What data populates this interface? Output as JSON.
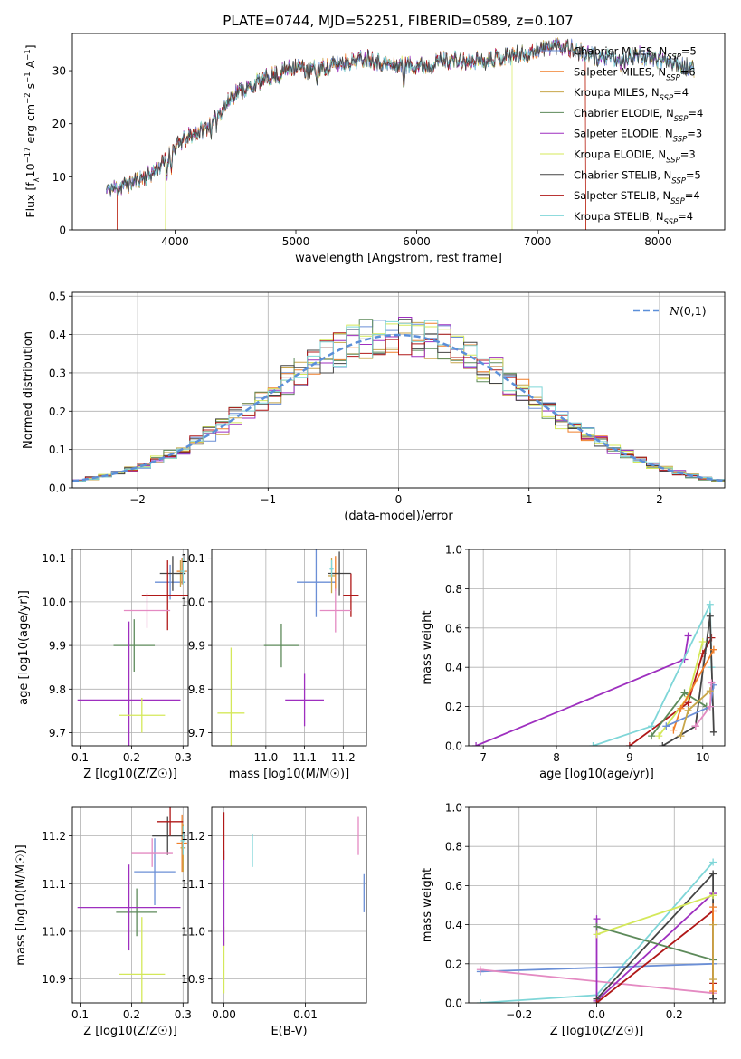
{
  "figure_title": "PLATE=0744, MJD=52251, FIBERID=0589, z=0.107",
  "model_colors": {
    "Chabrier MILES": "#6b8fd6",
    "Salpeter MILES": "#f07f2a",
    "Kroupa MILES": "#c8a64a",
    "Chabrier ELODIE": "#5d8a5a",
    "Salpeter ELODIE": "#9e2fbf",
    "Kroupa ELODIE": "#d4e85a",
    "Chabrier STELIB": "#444444",
    "Salpeter STELIB": "#b01818",
    "Kroupa STELIB": "#7fd6d8",
    "extra_pink": "#e48ac2",
    "normal_curve": "#5b8fd9"
  },
  "chart_data": [
    {
      "id": "spectrum",
      "type": "line",
      "title": "PLATE=0744, MJD=52251, FIBERID=0589, z=0.107",
      "xlabel": "wavelength [Angstrom, rest frame]",
      "ylabel": "Flux [f",
      "xlim": [
        3150,
        8550
      ],
      "ylim": [
        0,
        37
      ],
      "xticks": [
        4000,
        5000,
        6000,
        7000,
        8000
      ],
      "yticks": [
        0,
        10,
        20,
        30
      ],
      "grid": false,
      "legend_position": "right",
      "legend": [
        "Chabrier MILES, N=5",
        "Salpeter MILES, N=6",
        "Kroupa MILES, N=4",
        "Chabrier ELODIE, N=4",
        "Salpeter ELODIE, N=3",
        "Kroupa ELODIE, N=3",
        "Chabrier STELIB, N=5",
        "Salpeter STELIB, N=4",
        "Kroupa STELIB, N=4"
      ],
      "continuum_x": [
        3430,
        3600,
        3700,
        3800,
        3900,
        4000,
        4100,
        4200,
        4300,
        4400,
        4500,
        4600,
        4700,
        4800,
        4900,
        5000,
        5100,
        5200,
        5300,
        5400,
        5500,
        5600,
        5700,
        5800,
        5900,
        6000,
        6100,
        6200,
        6300,
        6400,
        6500,
        6600,
        6700,
        6800,
        6900,
        7000,
        7100,
        7200,
        7300,
        7400,
        7500,
        7600,
        7700,
        7800,
        7900,
        8000,
        8100,
        8200,
        8300
      ],
      "continuum_y": [
        7.5,
        8.5,
        9.5,
        10.5,
        12.5,
        15.5,
        17.5,
        18.5,
        20,
        23,
        26,
        26.5,
        28,
        29,
        30,
        31,
        30,
        30.5,
        31,
        31.5,
        32,
        32.5,
        31.5,
        31,
        31,
        31,
        31,
        32,
        32,
        31.5,
        32,
        32.5,
        32.5,
        33,
        33,
        34,
        34.5,
        35,
        34,
        33,
        32.5,
        32.5,
        31.5,
        33,
        32.5,
        32,
        32,
        31,
        30
      ]
    },
    {
      "id": "residuals",
      "type": "line",
      "xlabel": "(data-model)/error",
      "ylabel": "Normed distribution",
      "xlim": [
        -2.5,
        2.5
      ],
      "ylim": [
        0,
        0.51
      ],
      "xticks": [
        -2,
        -1,
        0,
        1,
        2
      ],
      "yticks": [
        0.0,
        0.1,
        0.2,
        0.3,
        0.4,
        0.5
      ],
      "grid": true,
      "legend_position": "top-right",
      "legend": [
        "N(0,1)"
      ],
      "hist_bin_width": 0.1
    },
    {
      "id": "z-age",
      "type": "scatter",
      "xlabel": "Z [log10(Z/Z☉)]",
      "ylabel": "age  [log10(age/yr)]",
      "xlim": [
        0.085,
        0.31
      ],
      "ylim": [
        9.67,
        10.12
      ],
      "xticks": [
        0.1,
        0.2,
        0.3
      ],
      "yticks": [
        9.7,
        9.8,
        9.9,
        10.0,
        10.1
      ],
      "grid": true,
      "points": [
        {
          "model": "Chabrier MILES",
          "x": 0.275,
          "y": 10.045,
          "xerr": 0.03,
          "yerr": 0.04
        },
        {
          "model": "Salpeter MILES",
          "x": 0.298,
          "y": 10.07,
          "xerr": 0.01,
          "yerr": 0.03
        },
        {
          "model": "Kroupa MILES",
          "x": 0.295,
          "y": 10.065,
          "xerr": 0.01,
          "yerr": 0.03
        },
        {
          "model": "Chabrier ELODIE",
          "x": 0.205,
          "y": 9.9,
          "xerr": 0.04,
          "yerr": 0.06
        },
        {
          "model": "Salpeter ELODIE",
          "x": 0.195,
          "y": 9.775,
          "xerr": 0.1,
          "yerr": 0.18
        },
        {
          "model": "Kroupa ELODIE",
          "x": 0.22,
          "y": 9.74,
          "xerr": 0.045,
          "yerr": 0.04
        },
        {
          "model": "Chabrier STELIB",
          "x": 0.28,
          "y": 10.065,
          "xerr": 0.025,
          "yerr": 0.04
        },
        {
          "model": "Salpeter STELIB",
          "x": 0.27,
          "y": 10.015,
          "xerr": 0.05,
          "yerr": 0.08
        },
        {
          "model": "Kroupa STELIB",
          "x": 0.3,
          "y": 10.07,
          "xerr": 0.005,
          "yerr": 0.03
        },
        {
          "model": "extra_pink",
          "x": 0.23,
          "y": 9.98,
          "xerr": 0.045,
          "yerr": 0.04
        }
      ]
    },
    {
      "id": "mass-age",
      "type": "scatter",
      "xlabel": "mass [log10(M/M☉)]",
      "ylabel": "",
      "xlim": [
        10.86,
        11.26
      ],
      "ylim": [
        9.67,
        10.12
      ],
      "xticks": [
        11.0,
        11.1,
        11.2
      ],
      "yticks": [
        9.7,
        9.8,
        9.9,
        10.0,
        10.1
      ],
      "grid": true,
      "points": [
        {
          "model": "Chabrier MILES",
          "x": 11.13,
          "y": 10.045,
          "xerr": 0.05,
          "yerr": 0.08
        },
        {
          "model": "Salpeter MILES",
          "x": 11.18,
          "y": 10.065,
          "xerr": 0.01,
          "yerr": 0.04
        },
        {
          "model": "Kroupa MILES",
          "x": 11.17,
          "y": 10.06,
          "xerr": 0.01,
          "yerr": 0.04
        },
        {
          "model": "Chabrier ELODIE",
          "x": 11.04,
          "y": 9.9,
          "xerr": 0.045,
          "yerr": 0.05
        },
        {
          "model": "Salpeter ELODIE",
          "x": 11.1,
          "y": 9.775,
          "xerr": 0.05,
          "yerr": 0.06
        },
        {
          "model": "Kroupa ELODIE",
          "x": 10.91,
          "y": 9.745,
          "xerr": 0.035,
          "yerr": 0.15
        },
        {
          "model": "Chabrier STELIB",
          "x": 11.19,
          "y": 10.065,
          "xerr": 0.03,
          "yerr": 0.05
        },
        {
          "model": "Salpeter STELIB",
          "x": 11.22,
          "y": 10.015,
          "xerr": 0.02,
          "yerr": 0.05
        },
        {
          "model": "Kroupa STELIB",
          "x": 11.17,
          "y": 10.075,
          "xerr": 0.005,
          "yerr": 0.02
        },
        {
          "model": "extra_pink",
          "x": 11.18,
          "y": 9.98,
          "xerr": 0.04,
          "yerr": 0.05
        }
      ]
    },
    {
      "id": "age-weight",
      "type": "line",
      "xlabel": "age  [log10(age/yr)]",
      "ylabel": "mass weight",
      "xlim": [
        6.8,
        10.3
      ],
      "ylim": [
        0,
        1.0
      ],
      "xticks": [
        7,
        8,
        9,
        10
      ],
      "yticks": [
        0.0,
        0.2,
        0.4,
        0.6,
        0.8,
        1.0
      ],
      "grid": true,
      "series": [
        {
          "model": "Salpeter ELODIE",
          "x": [
            6.9,
            9.75,
            9.8
          ],
          "y": [
            0.0,
            0.44,
            0.56
          ]
        },
        {
          "model": "Salpeter STELIB",
          "x": [
            9.0,
            9.8,
            10.0,
            10.12
          ],
          "y": [
            0.0,
            0.22,
            0.47,
            0.55
          ]
        },
        {
          "model": "Kroupa STELIB",
          "x": [
            8.5,
            9.3,
            10.1,
            10.12
          ],
          "y": [
            0.0,
            0.1,
            0.72,
            0.4
          ]
        },
        {
          "model": "Chabrier STELIB",
          "x": [
            9.45,
            9.9,
            10.1,
            10.15
          ],
          "y": [
            0.0,
            0.1,
            0.66,
            0.07
          ]
        },
        {
          "model": "Kroupa ELODIE",
          "x": [
            9.4,
            9.8,
            10.0
          ],
          "y": [
            0.05,
            0.25,
            0.53
          ]
        },
        {
          "model": "Chabrier ELODIE",
          "x": [
            9.3,
            9.75,
            10.05
          ],
          "y": [
            0.05,
            0.27,
            0.2
          ]
        },
        {
          "model": "Salpeter MILES",
          "x": [
            9.6,
            9.7,
            10.15
          ],
          "y": [
            0.08,
            0.19,
            0.49
          ]
        },
        {
          "model": "Chabrier MILES",
          "x": [
            9.5,
            10.1,
            10.15
          ],
          "y": [
            0.1,
            0.2,
            0.31
          ]
        },
        {
          "model": "extra_pink",
          "x": [
            9.9,
            10.1,
            10.12
          ],
          "y": [
            0.1,
            0.2,
            0.32
          ]
        },
        {
          "model": "Kroupa MILES",
          "x": [
            9.7,
            9.8,
            10.1
          ],
          "y": [
            0.05,
            0.18,
            0.28
          ]
        }
      ]
    },
    {
      "id": "z-mass",
      "type": "scatter",
      "xlabel": "Z [log10(Z/Z☉)]",
      "ylabel": "mass [log10(M/M☉)]",
      "xlim": [
        0.085,
        0.31
      ],
      "ylim": [
        10.85,
        11.26
      ],
      "xticks": [
        0.1,
        0.2,
        0.3
      ],
      "yticks": [
        10.9,
        11.0,
        11.1,
        11.2
      ],
      "grid": true,
      "points": [
        {
          "model": "Chabrier MILES",
          "x": 0.245,
          "y": 11.125,
          "xerr": 0.04,
          "yerr": 0.07
        },
        {
          "model": "Salpeter MILES",
          "x": 0.298,
          "y": 11.185,
          "xerr": 0.01,
          "yerr": 0.06
        },
        {
          "model": "Kroupa MILES",
          "x": 0.3,
          "y": 11.175,
          "xerr": 0.005,
          "yerr": 0.05
        },
        {
          "model": "Chabrier ELODIE",
          "x": 0.21,
          "y": 11.04,
          "xerr": 0.04,
          "yerr": 0.05
        },
        {
          "model": "Salpeter ELODIE",
          "x": 0.195,
          "y": 11.05,
          "xerr": 0.1,
          "yerr": 0.09
        },
        {
          "model": "Kroupa ELODIE",
          "x": 0.22,
          "y": 10.91,
          "xerr": 0.045,
          "yerr": 0.12
        },
        {
          "model": "Chabrier STELIB",
          "x": 0.27,
          "y": 11.2,
          "xerr": 0.03,
          "yerr": 0.04
        },
        {
          "model": "Salpeter STELIB",
          "x": 0.275,
          "y": 11.23,
          "xerr": 0.025,
          "yerr": 0.03
        },
        {
          "model": "Kroupa STELIB",
          "x": 0.3,
          "y": 11.19,
          "xerr": 0.005,
          "yerr": 0.03
        },
        {
          "model": "extra_pink",
          "x": 0.24,
          "y": 11.165,
          "xerr": 0.04,
          "yerr": 0.03
        }
      ]
    },
    {
      "id": "ebv-mass",
      "type": "scatter",
      "xlabel": "E(B-V)",
      "ylabel": "",
      "xlim": [
        -0.0015,
        0.0175
      ],
      "ylim": [
        10.85,
        11.26
      ],
      "xticks": [
        0.0,
        0.01
      ],
      "yticks": [
        10.9,
        11.0,
        11.1,
        11.2
      ],
      "grid": true,
      "points": [
        {
          "model": "Kroupa ELODIE",
          "x": 0.0,
          "y": 10.94,
          "yerr": 0.07
        },
        {
          "model": "Salpeter ELODIE",
          "x": 0.0,
          "y": 11.07,
          "yerr": 0.1
        },
        {
          "model": "Salpeter STELIB",
          "x": 0.0,
          "y": 11.2,
          "yerr": 0.05
        },
        {
          "model": "Kroupa STELIB",
          "x": 0.0035,
          "y": 11.17,
          "yerr": 0.035
        },
        {
          "model": "extra_pink",
          "x": 0.0165,
          "y": 11.2,
          "yerr": 0.04
        },
        {
          "model": "Chabrier MILES",
          "x": 0.0172,
          "y": 11.08,
          "yerr": 0.04
        }
      ]
    },
    {
      "id": "z-weight",
      "type": "line",
      "xlabel": "Z [log10(Z/Z☉)]",
      "ylabel": "mass weight",
      "xlim": [
        -0.33,
        0.33
      ],
      "ylim": [
        0,
        1.0
      ],
      "xticks": [
        -0.2,
        0.0,
        0.2
      ],
      "yticks": [
        0.0,
        0.2,
        0.4,
        0.6,
        0.8,
        1.0
      ],
      "grid": true,
      "series": [
        {
          "model": "Kroupa STELIB",
          "x": [
            -0.3,
            0.0,
            0.3
          ],
          "y": [
            0.0,
            0.04,
            0.72
          ]
        },
        {
          "model": "Chabrier MILES",
          "x": [
            -0.3,
            0.3
          ],
          "y": [
            0.16,
            0.2
          ]
        },
        {
          "model": "extra_pink",
          "x": [
            -0.3,
            0.3
          ],
          "y": [
            0.17,
            0.05
          ]
        },
        {
          "model": "Salpeter ELODIE",
          "x": [
            0.0,
            0.0,
            0.3
          ],
          "y": [
            0.43,
            0.01,
            0.56
          ]
        },
        {
          "model": "Chabrier STELIB",
          "x": [
            0.0,
            0.3,
            0.3
          ],
          "y": [
            0.02,
            0.66,
            0.02
          ]
        },
        {
          "model": "Salpeter STELIB",
          "x": [
            0.0,
            0.3,
            0.3
          ],
          "y": [
            0.0,
            0.47,
            0.1
          ]
        },
        {
          "model": "Kroupa ELODIE",
          "x": [
            0.0,
            0.3
          ],
          "y": [
            0.35,
            0.55
          ]
        },
        {
          "model": "Chabrier ELODIE",
          "x": [
            0.0,
            0.3
          ],
          "y": [
            0.39,
            0.22
          ]
        },
        {
          "model": "Salpeter MILES",
          "x": [
            0.3,
            0.3
          ],
          "y": [
            0.49,
            0.06
          ]
        },
        {
          "model": "Kroupa MILES",
          "x": [
            0.3,
            0.3
          ],
          "y": [
            0.4,
            0.12
          ]
        }
      ]
    }
  ]
}
